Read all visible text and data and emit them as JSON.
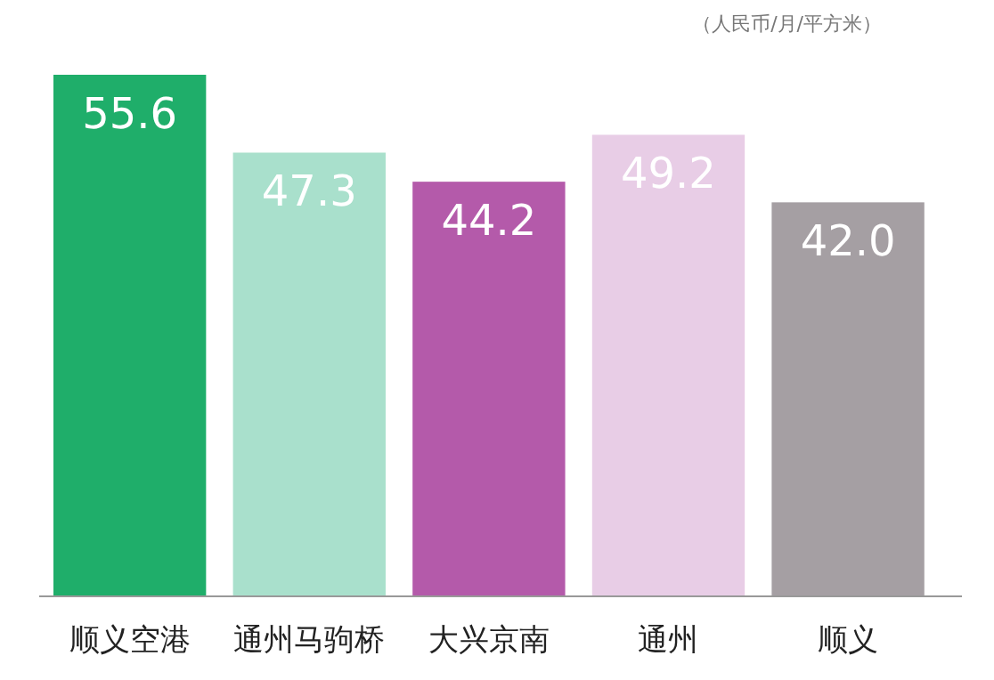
{
  "chart_data": {
    "type": "bar",
    "categories": [
      "顺义空港",
      "通州马驹桥",
      "大兴京南",
      "通州",
      "顺义"
    ],
    "values": [
      55.6,
      47.3,
      44.2,
      49.2,
      42.0
    ],
    "colors": [
      "#1fae6a",
      "#a9e0cc",
      "#b45aaa",
      "#e8cde6",
      "#a59fa3"
    ],
    "value_labels": [
      "55.6",
      "47.3",
      "44.2",
      "49.2",
      "42.0"
    ],
    "annotations": [
      "（人民币/月/平方米）"
    ]
  }
}
